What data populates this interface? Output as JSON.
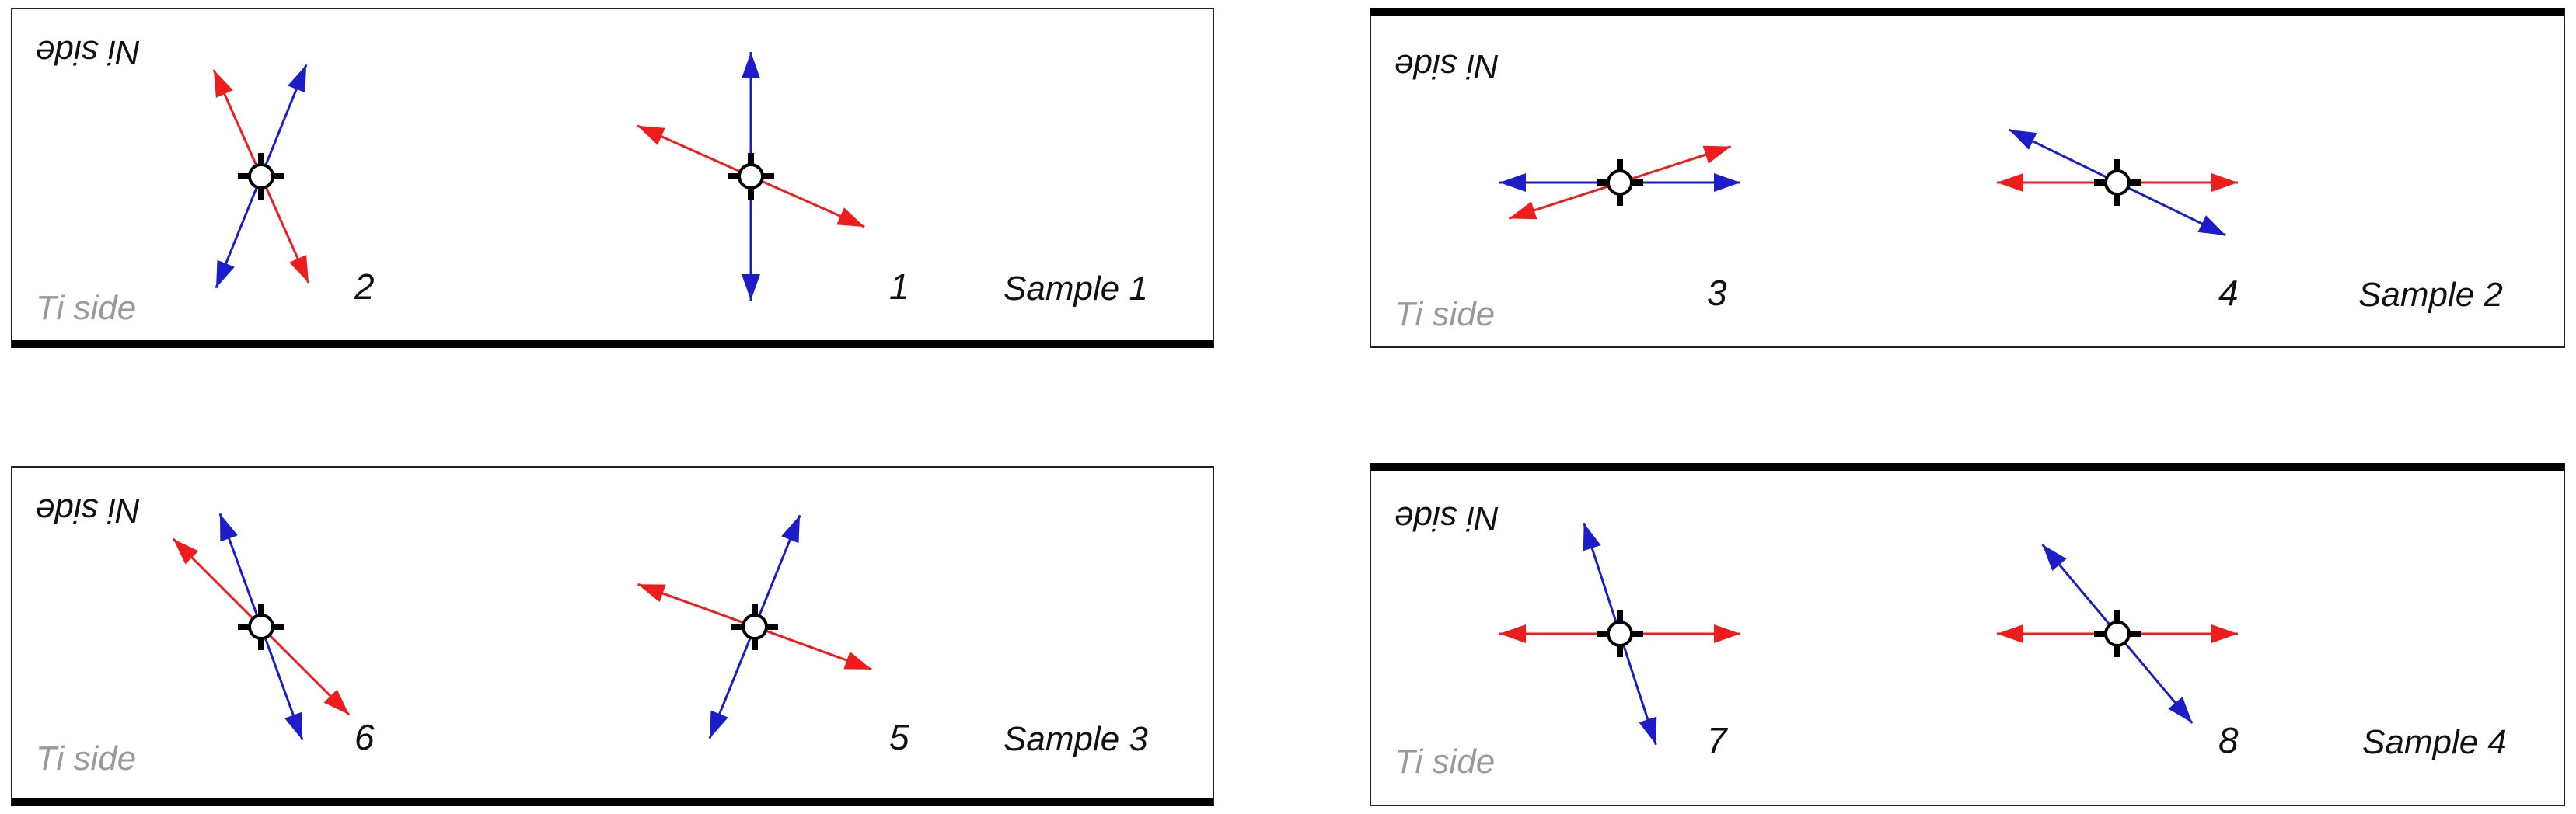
{
  "colors": {
    "red": "#ee1c1c",
    "blue": "#1c1cc8",
    "frame": "#111111",
    "ti_text": "#9a9a9a"
  },
  "labels": {
    "ni_side": "Ni side",
    "ti_side": "Ti side"
  },
  "panels": [
    {
      "sample_label": "Sample 1",
      "crystals": [
        {
          "number": "2",
          "red_angle_deg": 114,
          "blue_angle_deg": 68
        },
        {
          "number": "1",
          "red_angle_deg": 156,
          "blue_angle_deg": 90
        }
      ]
    },
    {
      "sample_label": "Sample 2",
      "crystals": [
        {
          "number": "3",
          "red_angle_deg": 18,
          "blue_angle_deg": 0
        },
        {
          "number": "4",
          "red_angle_deg": 0,
          "blue_angle_deg": 154
        }
      ]
    },
    {
      "sample_label": "Sample 3",
      "crystals": [
        {
          "number": "6",
          "red_angle_deg": 135,
          "blue_angle_deg": 110
        },
        {
          "number": "5",
          "red_angle_deg": 160,
          "blue_angle_deg": 68
        }
      ]
    },
    {
      "sample_label": "Sample 4",
      "crystals": [
        {
          "number": "7",
          "red_angle_deg": 0,
          "blue_angle_deg": 108
        },
        {
          "number": "8",
          "red_angle_deg": 0,
          "blue_angle_deg": 130
        }
      ]
    }
  ]
}
